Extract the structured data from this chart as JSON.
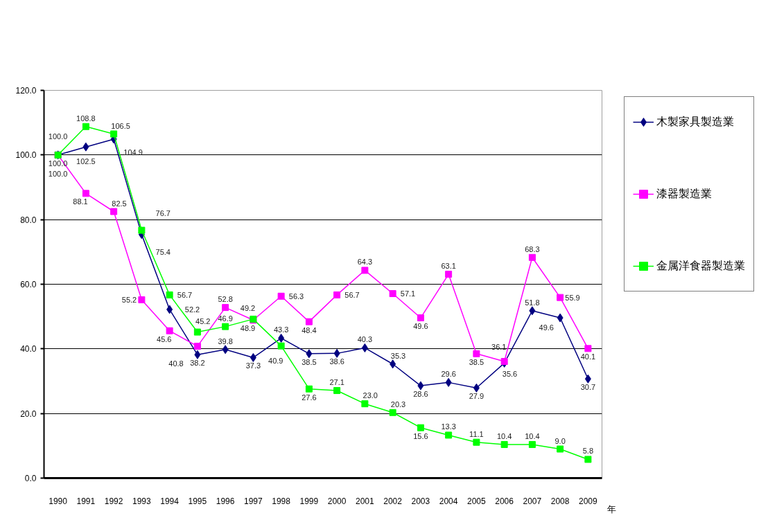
{
  "chart_data": {
    "type": "line",
    "xlabel": "年",
    "categories": [
      "1990",
      "1991",
      "1992",
      "1993",
      "1994",
      "1995",
      "1996",
      "1997",
      "1998",
      "1999",
      "2000",
      "2001",
      "2002",
      "2003",
      "2004",
      "2005",
      "2006",
      "2007",
      "2008",
      "2009"
    ],
    "ylim": [
      0,
      120
    ],
    "yticks": [
      {
        "value": 0,
        "label": "0.0"
      },
      {
        "value": 20,
        "label": "20.0"
      },
      {
        "value": 40,
        "label": "40.0"
      },
      {
        "value": 60,
        "label": "60.0"
      },
      {
        "value": 80,
        "label": "80.0"
      },
      {
        "value": 100,
        "label": "100.0"
      },
      {
        "value": 120,
        "label": "120.0"
      }
    ],
    "grid": "y",
    "legend": "right",
    "line_style": "solid",
    "series": [
      {
        "name": "木製家具製造業",
        "color": "#000080",
        "marker": "diamond",
        "values": [
          100.0,
          102.5,
          104.9,
          75.4,
          52.2,
          38.2,
          39.8,
          37.3,
          43.3,
          38.5,
          38.6,
          40.3,
          35.3,
          28.6,
          29.6,
          27.9,
          35.6,
          51.8,
          49.6,
          30.7
        ],
        "value_labels": [
          "100.0",
          "102.5",
          "104.9",
          "75.4",
          "52.2",
          "38.2",
          "39.8",
          "37.3",
          "43.3",
          "38.5",
          "38.6",
          "40.3",
          "35.3",
          "28.6",
          "29.6",
          "27.9",
          "35.6",
          "51.8",
          "49.6",
          "30.7"
        ]
      },
      {
        "name": "漆器製造業",
        "color": "#ff00ff",
        "marker": "square",
        "values": [
          100.0,
          88.1,
          82.5,
          55.2,
          45.6,
          40.8,
          52.8,
          48.9,
          56.3,
          48.4,
          56.7,
          64.3,
          57.1,
          49.6,
          63.1,
          38.5,
          36.1,
          68.3,
          55.9,
          40.1
        ],
        "value_labels": [
          "100.0",
          "88.1",
          "82.5",
          "55.2",
          "45.6",
          "40.8",
          "52.8",
          "48.9",
          "56.3",
          "48.4",
          "56.7",
          "64.3",
          "57.1",
          "49.6",
          "63.1",
          "38.5",
          "36.1",
          "68.3",
          "55.9",
          "40.1"
        ]
      },
      {
        "name": "金属洋食器製造業",
        "color": "#00ff00",
        "marker": "square",
        "values": [
          100.0,
          108.8,
          106.5,
          76.7,
          56.7,
          45.2,
          46.9,
          49.2,
          40.9,
          27.6,
          27.1,
          23.0,
          20.3,
          15.6,
          13.3,
          11.1,
          10.4,
          10.4,
          9.0,
          5.8
        ],
        "value_labels": [
          "100.0",
          "108.8",
          "106.5",
          "76.7",
          "56.7",
          "45.2",
          "46.9",
          "49.2",
          "40.9",
          "27.6",
          "27.1",
          "23.0",
          "20.3",
          "15.6",
          "13.3",
          "11.1",
          "10.4",
          "10.4",
          "9.0",
          "5.8"
        ]
      }
    ]
  }
}
